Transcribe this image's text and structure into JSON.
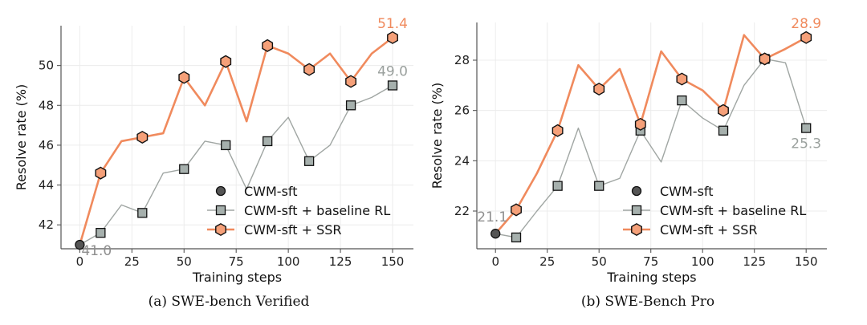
{
  "colors": {
    "ssr": "#f08a5d",
    "ssr_marker": "#f5a079",
    "baseline_line": "#a0a6a3",
    "baseline_marker": "#a6b0ad",
    "cwm_marker": "#555555",
    "grid": "#ececec",
    "axis": "#555555"
  },
  "chart_data": [
    {
      "type": "line",
      "caption": "(a) SWE-bench Verified",
      "xlabel": "Training steps",
      "ylabel": "Resolve rate (%)",
      "xlim": [
        -9,
        160
      ],
      "ylim": [
        40.8,
        52.0
      ],
      "xticks": [
        0,
        25,
        50,
        75,
        100,
        125,
        150
      ],
      "yticks": [
        42,
        44,
        46,
        48,
        50
      ],
      "grid": true,
      "legend_position": "lower-right",
      "series": [
        {
          "name": "CWM-sft",
          "key": "cwm",
          "line": [],
          "markers": [
            [
              0,
              41.0
            ]
          ]
        },
        {
          "name": "CWM-sft + baseline RL",
          "key": "baseline",
          "line": [
            [
              0,
              41.0
            ],
            [
              10,
              41.6
            ],
            [
              20,
              43.0
            ],
            [
              30,
              42.6
            ],
            [
              40,
              44.6
            ],
            [
              50,
              44.8
            ],
            [
              60,
              46.2
            ],
            [
              70,
              46.0
            ],
            [
              80,
              43.8
            ],
            [
              90,
              46.2
            ],
            [
              100,
              47.4
            ],
            [
              110,
              45.2
            ],
            [
              120,
              46.0
            ],
            [
              130,
              48.0
            ],
            [
              140,
              48.4
            ],
            [
              150,
              49.0
            ]
          ],
          "markers": [
            [
              10,
              41.6
            ],
            [
              30,
              42.6
            ],
            [
              50,
              44.8
            ],
            [
              70,
              46.0
            ],
            [
              90,
              46.2
            ],
            [
              110,
              45.2
            ],
            [
              130,
              48.0
            ],
            [
              150,
              49.0
            ]
          ]
        },
        {
          "name": "CWM-sft + SSR",
          "key": "ssr",
          "line": [
            [
              0,
              41.0
            ],
            [
              10,
              44.6
            ],
            [
              20,
              46.2
            ],
            [
              30,
              46.4
            ],
            [
              40,
              46.6
            ],
            [
              50,
              49.4
            ],
            [
              60,
              48.0
            ],
            [
              70,
              50.2
            ],
            [
              80,
              47.2
            ],
            [
              90,
              51.0
            ],
            [
              100,
              50.6
            ],
            [
              110,
              49.8
            ],
            [
              120,
              50.6
            ],
            [
              130,
              49.2
            ],
            [
              140,
              50.6
            ],
            [
              150,
              51.4
            ]
          ],
          "markers": [
            [
              10,
              44.6
            ],
            [
              30,
              46.4
            ],
            [
              50,
              49.4
            ],
            [
              70,
              50.2
            ],
            [
              90,
              51.0
            ],
            [
              110,
              49.8
            ],
            [
              130,
              49.2
            ],
            [
              150,
              51.4
            ]
          ]
        }
      ],
      "annotations": [
        {
          "text": "41.0",
          "x": 0,
          "y": 41.0,
          "color_key": "cwm",
          "placement": "below-right"
        },
        {
          "text": "49.0",
          "x": 150,
          "y": 49.0,
          "color_key": "baseline",
          "placement": "above"
        },
        {
          "text": "51.4",
          "x": 150,
          "y": 51.4,
          "color_key": "ssr",
          "placement": "above"
        }
      ]
    },
    {
      "type": "line",
      "caption": "(b) SWE-Bench Pro",
      "xlabel": "Training steps",
      "ylabel": "Resolve rate (%)",
      "xlim": [
        -9,
        160
      ],
      "ylim": [
        20.5,
        29.5
      ],
      "xticks": [
        0,
        25,
        50,
        75,
        100,
        125,
        150
      ],
      "yticks": [
        22,
        24,
        26,
        28
      ],
      "grid": true,
      "legend_position": "lower-right",
      "series": [
        {
          "name": "CWM-sft",
          "key": "cwm",
          "line": [],
          "markers": [
            [
              0,
              21.1
            ]
          ]
        },
        {
          "name": "CWM-sft + baseline RL",
          "key": "baseline",
          "line": [
            [
              0,
              21.1
            ],
            [
              10,
              20.95
            ],
            [
              20,
              22.0
            ],
            [
              30,
              23.0
            ],
            [
              40,
              25.3
            ],
            [
              50,
              23.0
            ],
            [
              60,
              23.3
            ],
            [
              70,
              25.2
            ],
            [
              80,
              23.95
            ],
            [
              90,
              26.4
            ],
            [
              100,
              25.7
            ],
            [
              110,
              25.2
            ],
            [
              120,
              27.0
            ],
            [
              130,
              28.05
            ],
            [
              140,
              27.9
            ],
            [
              150,
              25.3
            ]
          ],
          "markers": [
            [
              10,
              20.95
            ],
            [
              30,
              23.0
            ],
            [
              50,
              23.0
            ],
            [
              70,
              25.2
            ],
            [
              90,
              26.4
            ],
            [
              110,
              25.2
            ],
            [
              130,
              28.05
            ],
            [
              150,
              25.3
            ]
          ]
        },
        {
          "name": "CWM-sft + SSR",
          "key": "ssr",
          "line": [
            [
              0,
              21.1
            ],
            [
              10,
              22.05
            ],
            [
              20,
              23.5
            ],
            [
              30,
              25.2
            ],
            [
              40,
              27.8
            ],
            [
              50,
              26.85
            ],
            [
              60,
              27.65
            ],
            [
              70,
              25.45
            ],
            [
              80,
              28.35
            ],
            [
              90,
              27.25
            ],
            [
              100,
              26.8
            ],
            [
              110,
              26.0
            ],
            [
              120,
              29.0
            ],
            [
              130,
              28.05
            ],
            [
              140,
              28.45
            ],
            [
              150,
              28.9
            ]
          ],
          "markers": [
            [
              10,
              22.05
            ],
            [
              30,
              25.2
            ],
            [
              50,
              26.85
            ],
            [
              70,
              25.45
            ],
            [
              90,
              27.25
            ],
            [
              110,
              26.0
            ],
            [
              130,
              28.05
            ],
            [
              150,
              28.9
            ]
          ]
        }
      ],
      "annotations": [
        {
          "text": "21.1",
          "x": 0,
          "y": 21.1,
          "color_key": "cwm",
          "placement": "above-left"
        },
        {
          "text": "25.3",
          "x": 150,
          "y": 25.3,
          "color_key": "baseline",
          "placement": "below"
        },
        {
          "text": "28.9",
          "x": 150,
          "y": 28.9,
          "color_key": "ssr",
          "placement": "above"
        }
      ]
    }
  ]
}
